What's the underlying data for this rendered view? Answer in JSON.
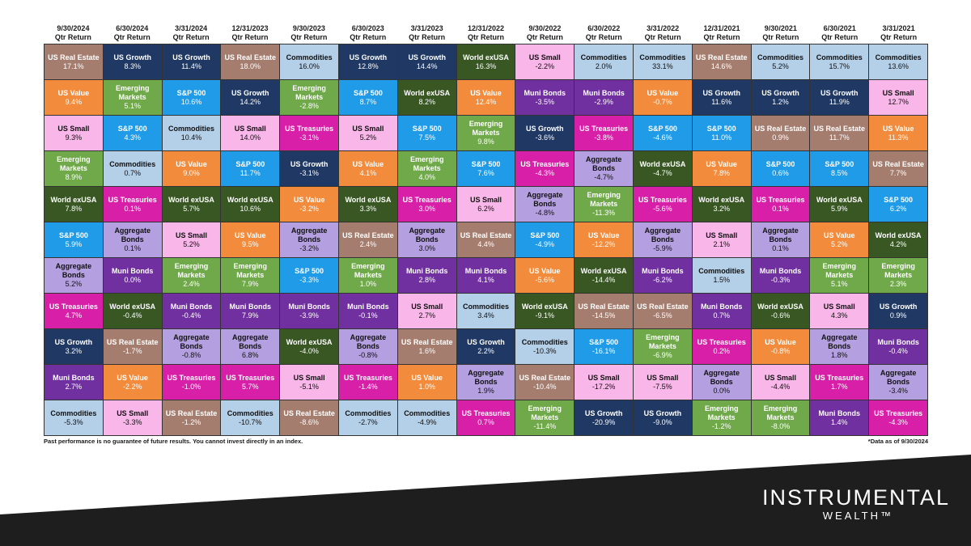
{
  "colors": {
    "US Real Estate": "#a57d6e",
    "US Growth": "#1f3864",
    "Commodities": "#b4cfe8",
    "World exUSA": "#385723",
    "US Small": "#f9b6e9",
    "US Value": "#f28c3c",
    "Emerging Markets": "#70a94a",
    "S&P 500": "#1f9be8",
    "Muni Bonds": "#7030a0",
    "US Treasuries": "#d81fa8",
    "Aggregate Bonds": "#b4a0e0",
    "dark_band": "#1e1e1e"
  },
  "dark_text_assets": [
    "Commodities",
    "US Small",
    "Aggregate Bonds"
  ],
  "chart_data": {
    "type": "table",
    "periods": [
      "9/30/2024",
      "6/30/2024",
      "3/31/2024",
      "12/31/2023",
      "9/30/2023",
      "6/30/2023",
      "3/31/2023",
      "12/31/2022",
      "9/30/2022",
      "6/30/2022",
      "3/31/2022",
      "12/31/2021",
      "9/30/2021",
      "6/30/2021",
      "3/31/2021"
    ],
    "period_sublabel": "Qtr Return",
    "columns": [
      [
        [
          "US Real Estate",
          "17.1%"
        ],
        [
          "US Value",
          "9.4%"
        ],
        [
          "US Small",
          "9.3%"
        ],
        [
          "Emerging Markets",
          "8.9%"
        ],
        [
          "World exUSA",
          "7.8%"
        ],
        [
          "S&P 500",
          "5.9%"
        ],
        [
          "Aggregate Bonds",
          "5.2%"
        ],
        [
          "US Treasuries",
          "4.7%"
        ],
        [
          "US Growth",
          "3.2%"
        ],
        [
          "Muni Bonds",
          "2.7%"
        ],
        [
          "Commodities",
          "-5.3%"
        ]
      ],
      [
        [
          "US Growth",
          "8.3%"
        ],
        [
          "Emerging Markets",
          "5.1%"
        ],
        [
          "S&P 500",
          "4.3%"
        ],
        [
          "Commodities",
          "0.7%"
        ],
        [
          "US Treasuries",
          "0.1%"
        ],
        [
          "Aggregate Bonds",
          "0.1%"
        ],
        [
          "Muni Bonds",
          "0.0%"
        ],
        [
          "World exUSA",
          "-0.4%"
        ],
        [
          "US Real Estate",
          "-1.7%"
        ],
        [
          "US Value",
          "-2.2%"
        ],
        [
          "US Small",
          "-3.3%"
        ]
      ],
      [
        [
          "US Growth",
          "11.4%"
        ],
        [
          "S&P 500",
          "10.6%"
        ],
        [
          "Commodities",
          "10.4%"
        ],
        [
          "US Value",
          "9.0%"
        ],
        [
          "World exUSA",
          "5.7%"
        ],
        [
          "US Small",
          "5.2%"
        ],
        [
          "Emerging Markets",
          "2.4%"
        ],
        [
          "Muni Bonds",
          "-0.4%"
        ],
        [
          "Aggregate Bonds",
          "-0.8%"
        ],
        [
          "US Treasuries",
          "-1.0%"
        ],
        [
          "US Real Estate",
          "-1.2%"
        ]
      ],
      [
        [
          "US Real Estate",
          "18.0%"
        ],
        [
          "US Growth",
          "14.2%"
        ],
        [
          "US Small",
          "14.0%"
        ],
        [
          "S&P 500",
          "11.7%"
        ],
        [
          "World exUSA",
          "10.6%"
        ],
        [
          "US Value",
          "9.5%"
        ],
        [
          "Emerging Markets",
          "7.9%"
        ],
        [
          "Muni Bonds",
          "7.9%"
        ],
        [
          "Aggregate Bonds",
          "6.8%"
        ],
        [
          "US Treasuries",
          "5.7%"
        ],
        [
          "Commodities",
          "-10.7%"
        ]
      ],
      [
        [
          "Commodities",
          "16.0%"
        ],
        [
          "Emerging Markets",
          "-2.8%"
        ],
        [
          "US Treasuries",
          "-3.1%"
        ],
        [
          "US Growth",
          "-3.1%"
        ],
        [
          "US Value",
          "-3.2%"
        ],
        [
          "Aggregate Bonds",
          "-3.2%"
        ],
        [
          "S&P 500",
          "-3.3%"
        ],
        [
          "Muni Bonds",
          "-3.9%"
        ],
        [
          "World exUSA",
          "-4.0%"
        ],
        [
          "US Small",
          "-5.1%"
        ],
        [
          "US Real Estate",
          "-8.6%"
        ]
      ],
      [
        [
          "US Growth",
          "12.8%"
        ],
        [
          "S&P 500",
          "8.7%"
        ],
        [
          "US Small",
          "5.2%"
        ],
        [
          "US Value",
          "4.1%"
        ],
        [
          "World exUSA",
          "3.3%"
        ],
        [
          "US Real Estate",
          "2.4%"
        ],
        [
          "Emerging Markets",
          "1.0%"
        ],
        [
          "Muni Bonds",
          "-0.1%"
        ],
        [
          "Aggregate Bonds",
          "-0.8%"
        ],
        [
          "US Treasuries",
          "-1.4%"
        ],
        [
          "Commodities",
          "-2.7%"
        ]
      ],
      [
        [
          "US Growth",
          "14.4%"
        ],
        [
          "World exUSA",
          "8.2%"
        ],
        [
          "S&P 500",
          "7.5%"
        ],
        [
          "Emerging Markets",
          "4.0%"
        ],
        [
          "US Treasuries",
          "3.0%"
        ],
        [
          "Aggregate Bonds",
          "3.0%"
        ],
        [
          "Muni Bonds",
          "2.8%"
        ],
        [
          "US Small",
          "2.7%"
        ],
        [
          "US Real Estate",
          "1.6%"
        ],
        [
          "US Value",
          "1.0%"
        ],
        [
          "Commodities",
          "-4.9%"
        ]
      ],
      [
        [
          "World exUSA",
          "16.3%"
        ],
        [
          "US Value",
          "12.4%"
        ],
        [
          "Emerging Markets",
          "9.8%"
        ],
        [
          "S&P 500",
          "7.6%"
        ],
        [
          "US Small",
          "6.2%"
        ],
        [
          "US Real Estate",
          "4.4%"
        ],
        [
          "Muni Bonds",
          "4.1%"
        ],
        [
          "Commodities",
          "3.4%"
        ],
        [
          "US Growth",
          "2.2%"
        ],
        [
          "Aggregate Bonds",
          "1.9%"
        ],
        [
          "US Treasuries",
          "0.7%"
        ]
      ],
      [
        [
          "US Small",
          "-2.2%"
        ],
        [
          "Muni Bonds",
          "-3.5%"
        ],
        [
          "US Growth",
          "-3.6%"
        ],
        [
          "US Treasuries",
          "-4.3%"
        ],
        [
          "Aggregate Bonds",
          "-4.8%"
        ],
        [
          "S&P 500",
          "-4.9%"
        ],
        [
          "US Value",
          "-5.6%"
        ],
        [
          "World exUSA",
          "-9.1%"
        ],
        [
          "Commodities",
          "-10.3%"
        ],
        [
          "US Real Estate",
          "-10.4%"
        ],
        [
          "Emerging Markets",
          "-11.4%"
        ]
      ],
      [
        [
          "Commodities",
          "2.0%"
        ],
        [
          "Muni Bonds",
          "-2.9%"
        ],
        [
          "US Treasuries",
          "-3.8%"
        ],
        [
          "Aggregate Bonds",
          "-4.7%"
        ],
        [
          "Emerging Markets",
          "-11.3%"
        ],
        [
          "US Value",
          "-12.2%"
        ],
        [
          "World exUSA",
          "-14.4%"
        ],
        [
          "US Real Estate",
          "-14.5%"
        ],
        [
          "S&P 500",
          "-16.1%"
        ],
        [
          "US Small",
          "-17.2%"
        ],
        [
          "US Growth",
          "-20.9%"
        ]
      ],
      [
        [
          "Commodities",
          "33.1%"
        ],
        [
          "US Value",
          "-0.7%"
        ],
        [
          "S&P 500",
          "-4.6%"
        ],
        [
          "World exUSA",
          "-4.7%"
        ],
        [
          "US Treasuries",
          "-5.6%"
        ],
        [
          "Aggregate Bonds",
          "-5.9%"
        ],
        [
          "Muni Bonds",
          "-6.2%"
        ],
        [
          "US Real Estate",
          "-6.5%"
        ],
        [
          "Emerging Markets",
          "-6.9%"
        ],
        [
          "US Small",
          "-7.5%"
        ],
        [
          "US Growth",
          "-9.0%"
        ]
      ],
      [
        [
          "US Real Estate",
          "14.6%"
        ],
        [
          "US Growth",
          "11.6%"
        ],
        [
          "S&P 500",
          "11.0%"
        ],
        [
          "US Value",
          "7.8%"
        ],
        [
          "World exUSA",
          "3.2%"
        ],
        [
          "US Small",
          "2.1%"
        ],
        [
          "Commodities",
          "1.5%"
        ],
        [
          "Muni Bonds",
          "0.7%"
        ],
        [
          "US Treasuries",
          "0.2%"
        ],
        [
          "Aggregate Bonds",
          "0.0%"
        ],
        [
          "Emerging Markets",
          "-1.2%"
        ]
      ],
      [
        [
          "Commodities",
          "5.2%"
        ],
        [
          "US Growth",
          "1.2%"
        ],
        [
          "US Real Estate",
          "0.9%"
        ],
        [
          "S&P 500",
          "0.6%"
        ],
        [
          "US Treasuries",
          "0.1%"
        ],
        [
          "Aggregate Bonds",
          "0.1%"
        ],
        [
          "Muni Bonds",
          "-0.3%"
        ],
        [
          "World exUSA",
          "-0.6%"
        ],
        [
          "US Value",
          "-0.8%"
        ],
        [
          "US Small",
          "-4.4%"
        ],
        [
          "Emerging Markets",
          "-8.0%"
        ]
      ],
      [
        [
          "Commodities",
          "15.7%"
        ],
        [
          "US Growth",
          "11.9%"
        ],
        [
          "US Real Estate",
          "11.7%"
        ],
        [
          "S&P 500",
          "8.5%"
        ],
        [
          "World exUSA",
          "5.9%"
        ],
        [
          "US Value",
          "5.2%"
        ],
        [
          "Emerging Markets",
          "5.1%"
        ],
        [
          "US Small",
          "4.3%"
        ],
        [
          "Aggregate Bonds",
          "1.8%"
        ],
        [
          "US Treasuries",
          "1.7%"
        ],
        [
          "Muni Bonds",
          "1.4%"
        ]
      ],
      [
        [
          "Commodities",
          "13.6%"
        ],
        [
          "US Small",
          "12.7%"
        ],
        [
          "US Value",
          "11.3%"
        ],
        [
          "US Real Estate",
          "7.7%"
        ],
        [
          "S&P 500",
          "6.2%"
        ],
        [
          "World exUSA",
          "4.2%"
        ],
        [
          "Emerging Markets",
          "2.3%"
        ],
        [
          "US Growth",
          "0.9%"
        ],
        [
          "Muni Bonds",
          "-0.4%"
        ],
        [
          "Aggregate Bonds",
          "-3.4%"
        ],
        [
          "US Treasuries",
          "-4.3%"
        ]
      ]
    ]
  },
  "footer": {
    "disclaimer": "Past performance is no guarantee of future results. You cannot invest directly in an index.",
    "data_note": "*Data as of 9/30/2024"
  },
  "brand": {
    "line1": "INSTRUMENTAL",
    "line2": "WEALTH™"
  }
}
